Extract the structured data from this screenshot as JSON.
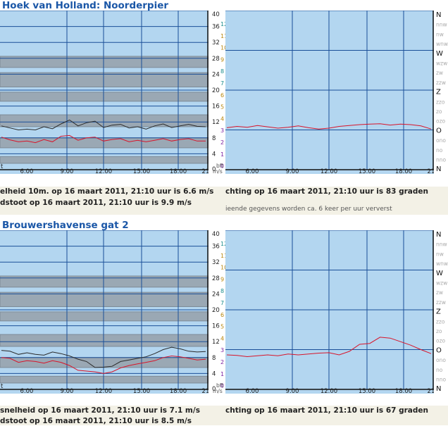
{
  "chart_data": [
    {
      "station": "Hoek van Holland: Noorderpier",
      "speed": {
        "type": "line",
        "x_ticks": [
          "6.00",
          "9.00",
          "12.00",
          "15.00",
          "18.00",
          "21.0"
        ],
        "y_ticks_ms": [
          "40",
          "36",
          "32",
          "28",
          "24",
          "20",
          "16",
          "12",
          "8",
          "4",
          "0"
        ],
        "y_ticks_bft": [
          "12",
          "11",
          "10",
          "9",
          "8",
          "7",
          "6",
          "5",
          "4",
          "3",
          "2",
          "1",
          "0"
        ],
        "unit_ms": "m/s",
        "unit_bft": "bft",
        "axis_letter": "t",
        "ylim": [
          0,
          40
        ],
        "series": [
          {
            "color": "#2a2a2a",
            "values": [
              11.0,
              10.5,
              10.0,
              10.2,
              10.0,
              10.8,
              10.3,
              11.5,
              12.5,
              11.0,
              11.8,
              12.2,
              10.6,
              11.2,
              11.4,
              10.5,
              10.8,
              10.2,
              11.0,
              11.5,
              10.6,
              11.0,
              11.4,
              10.9,
              10.8
            ]
          },
          {
            "color": "#d8142a",
            "values": [
              8.2,
              7.5,
              7.0,
              7.2,
              6.8,
              7.6,
              7.0,
              8.4,
              8.6,
              7.4,
              8.0,
              8.2,
              7.2,
              7.6,
              7.8,
              7.0,
              7.4,
              7.0,
              7.4,
              7.8,
              7.2,
              7.6,
              7.8,
              7.2,
              7.2
            ]
          }
        ]
      },
      "direction": {
        "type": "line",
        "x_ticks": [
          "6.00",
          "9.00",
          "12.00",
          "15.00",
          "18.00",
          "21.0"
        ],
        "y_ticks_dir": [
          "N",
          "nnw",
          "nw",
          "wnw",
          "W",
          "wzw",
          "zw",
          "zzw",
          "Z",
          "zzo",
          "zo",
          "ozo",
          "O",
          "ono",
          "no",
          "nno",
          "N"
        ],
        "series": [
          {
            "color": "#d8142a",
            "values": [
              95,
              98,
              96,
              100,
              97,
              94,
              96,
              99,
              95,
              92,
              94,
              98,
              100,
              102,
              103,
              104,
              101,
              103,
              102,
              99,
              92
            ]
          }
        ]
      },
      "speed_text": "elheid 10m. op 16 maart 2011, 21:10 uur is 6.6 m/s",
      "gust_text": "dstoot op 16 maart 2011, 21:10 uur is 9.9 m/s",
      "direction_text": "chting op 16 maart 2011, 21:10 uur is 83 graden",
      "note_text": "ieende gegevens worden ca. 6 keer per uur ververst"
    },
    {
      "station": "Brouwershavense gat 2",
      "speed": {
        "type": "line",
        "x_ticks": [
          "6.00",
          "9.00",
          "12.00",
          "15.00",
          "18.00",
          "21.0"
        ],
        "y_ticks_ms": [
          "40",
          "36",
          "32",
          "28",
          "24",
          "20",
          "16",
          "12",
          "8",
          "4",
          "0"
        ],
        "y_ticks_bft": [
          "12",
          "11",
          "10",
          "9",
          "8",
          "7",
          "6",
          "5",
          "4",
          "3",
          "2",
          "1",
          "0"
        ],
        "unit_ms": "m/s",
        "unit_bft": "bft",
        "axis_letter": "t",
        "ylim": [
          0,
          40
        ],
        "series": [
          {
            "color": "#2a2a2a",
            "values": [
              9.8,
              9.6,
              8.8,
              9.2,
              8.8,
              8.6,
              9.4,
              9.0,
              8.4,
              7.6,
              7.0,
              5.5,
              5.6,
              5.8,
              7.0,
              7.4,
              7.8,
              8.2,
              9.0,
              10.0,
              10.6,
              10.2,
              9.6,
              9.4,
              9.5
            ]
          },
          {
            "color": "#d8142a",
            "values": [
              8.0,
              7.8,
              6.8,
              7.2,
              7.0,
              6.6,
              7.2,
              6.8,
              6.0,
              4.8,
              4.6,
              4.4,
              4.0,
              4.4,
              5.4,
              6.0,
              6.4,
              6.8,
              7.2,
              8.0,
              8.4,
              8.2,
              7.8,
              7.4,
              7.6
            ]
          }
        ]
      },
      "direction": {
        "type": "line",
        "x_ticks": [
          "6.00",
          "9.00",
          "12.00",
          "15.00",
          "18.00",
          "21.0"
        ],
        "y_ticks_dir": [
          "N",
          "nnw",
          "nw",
          "wnw",
          "W",
          "wzw",
          "zw",
          "zzw",
          "Z",
          "zzo",
          "zo",
          "ozo",
          "O",
          "ono",
          "no",
          "nno",
          "N"
        ],
        "series": [
          {
            "color": "#d8142a",
            "values": [
              78,
              77,
              74,
              76,
              78,
              76,
              80,
              78,
              80,
              82,
              83,
              78,
              86,
              102,
              104,
              118,
              116,
              108,
              100,
              90,
              81
            ]
          }
        ]
      },
      "speed_text": "snelheid op 16 maart 2011, 21:10 uur is 7.1 m/s",
      "gust_text": "dstoot op 16 maart 2011, 21:10 uur is 8.5 m/s",
      "direction_text": "chting op 16 maart 2011, 21:10 uur is 67 graden"
    }
  ],
  "colors": {
    "sky": "#b3d6f0",
    "band": "#9aa8b4",
    "band_edge": "#7d8a96",
    "grid": "#1a4f98",
    "bft": [
      "#b8860b",
      "#1a8c8c",
      "#7b1fa2"
    ],
    "title": "#1b57a7"
  }
}
